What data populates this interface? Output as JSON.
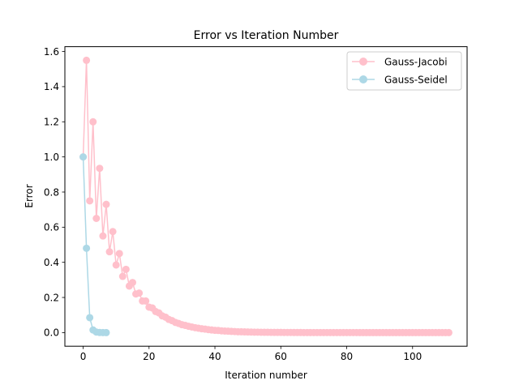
{
  "chart_data": {
    "type": "line",
    "title": "Error vs Iteration Number",
    "xlabel": "Iteration number",
    "ylabel": "Error",
    "xlim": [
      -5.55,
      116.55
    ],
    "ylim": [
      -0.0775,
      1.6275
    ],
    "xticks": [
      0,
      20,
      40,
      60,
      80,
      100
    ],
    "yticks": [
      0.0,
      0.2,
      0.4,
      0.6,
      0.8,
      1.0,
      1.2,
      1.4,
      1.6
    ],
    "ytick_labels": [
      "0.0",
      "0.2",
      "0.4",
      "0.6",
      "0.8",
      "1.0",
      "1.2",
      "1.4",
      "1.6"
    ],
    "xtick_labels": [
      "0",
      "20",
      "40",
      "60",
      "80",
      "100"
    ],
    "grid": false,
    "legend": "top-right",
    "series": [
      {
        "name": "Gauss-Jacobi",
        "color": "#ffc0cb",
        "marker": "circle",
        "x": [
          0,
          1,
          2,
          3,
          4,
          5,
          6,
          7,
          8,
          9,
          10,
          11,
          12,
          13,
          14,
          15,
          16,
          17,
          18,
          19,
          20,
          21,
          22,
          23,
          24,
          25,
          26,
          27,
          28,
          29,
          30,
          31,
          32,
          33,
          34,
          35,
          36,
          37,
          38,
          39,
          40,
          41,
          42,
          43,
          44,
          45,
          46,
          47,
          48,
          49,
          50,
          51,
          52,
          53,
          54,
          55,
          56,
          57,
          58,
          59,
          60,
          61,
          62,
          63,
          64,
          65,
          66,
          67,
          68,
          69,
          70,
          71,
          72,
          73,
          74,
          75,
          76,
          77,
          78,
          79,
          80,
          81,
          82,
          83,
          84,
          85,
          86,
          87,
          88,
          89,
          90,
          91,
          92,
          93,
          94,
          95,
          96,
          97,
          98,
          99,
          100,
          101,
          102,
          103,
          104,
          105,
          106,
          107,
          108,
          109,
          110,
          111
        ],
        "values": [
          1.0,
          1.55,
          0.75,
          1.2,
          0.65,
          0.935,
          0.55,
          0.73,
          0.46,
          0.575,
          0.385,
          0.45,
          0.32,
          0.36,
          0.265,
          0.285,
          0.22,
          0.225,
          0.18,
          0.18,
          0.145,
          0.14,
          0.12,
          0.112,
          0.095,
          0.088,
          0.075,
          0.068,
          0.058,
          0.052,
          0.045,
          0.041,
          0.036,
          0.032,
          0.028,
          0.025,
          0.022,
          0.02,
          0.017,
          0.015,
          0.013,
          0.012,
          0.01,
          0.009,
          0.008,
          0.007,
          0.006,
          0.005,
          0.0045,
          0.004,
          0.0035,
          0.003,
          0.0027,
          0.0024,
          0.0021,
          0.0018,
          0.0016,
          0.0014,
          0.0012,
          0.0011,
          0.001,
          0.0009,
          0.0008,
          0.0007,
          0.0006,
          0.0005,
          0.0005,
          0.0004,
          0.0004,
          0.0003,
          0.0003,
          0.0003,
          0.0002,
          0.0002,
          0.0002,
          0.0002,
          0.0001,
          0.0001,
          0.0001,
          0.0001,
          0.0001,
          0.0001,
          0.0001,
          0.0001,
          0.0,
          0.0,
          0.0,
          0.0,
          0.0,
          0.0,
          0.0,
          0.0,
          0.0,
          0.0,
          0.0,
          0.0,
          0.0,
          0.0,
          0.0,
          0.0,
          0.0,
          0.0,
          0.0,
          0.0,
          0.0,
          0.0,
          0.0,
          0.0,
          0.0,
          0.0,
          0.0,
          0.0
        ]
      },
      {
        "name": "Gauss-Seidel",
        "color": "#add8e6",
        "marker": "circle",
        "x": [
          0,
          1,
          2,
          3,
          4,
          5,
          6,
          7
        ],
        "values": [
          1.0,
          0.48,
          0.085,
          0.015,
          0.003,
          0.0006,
          0.0001,
          0.0
        ]
      }
    ]
  }
}
